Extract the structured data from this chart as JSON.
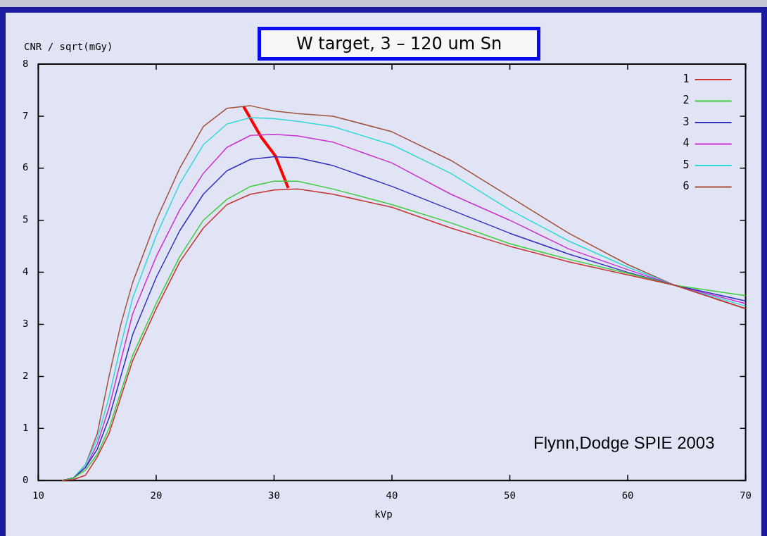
{
  "chart_data": {
    "type": "line",
    "title": "W target, 3 – 120 um Sn",
    "xlabel": "kVp",
    "ylabel": "CNR / sqrt(mGy)",
    "annotations": [
      "Flynn,Dodge SPIE 2003"
    ],
    "xlim": [
      10,
      70
    ],
    "xticks": [
      10,
      20,
      30,
      40,
      50,
      60,
      70
    ],
    "ylim": [
      0,
      8
    ],
    "yticks": [
      0,
      1,
      2,
      3,
      4,
      5,
      6,
      7,
      8
    ],
    "grid": false,
    "legend": "top right",
    "marker": "none",
    "line_style": "solid",
    "x": [
      12,
      13,
      14,
      15,
      16,
      17,
      18,
      20,
      22,
      24,
      26,
      28,
      30,
      32,
      35,
      40,
      45,
      50,
      55,
      60,
      64,
      70
    ],
    "series": [
      {
        "name": "1",
        "color": "#c83232",
        "values": [
          0,
          0.02,
          0.1,
          0.45,
          0.9,
          1.6,
          2.3,
          3.3,
          4.2,
          4.85,
          5.3,
          5.5,
          5.58,
          5.6,
          5.5,
          5.25,
          4.85,
          4.5,
          4.2,
          3.95,
          3.75,
          3.3
        ]
      },
      {
        "name": "2",
        "color": "#3ccc3c",
        "values": [
          0,
          0.05,
          0.2,
          0.5,
          1.0,
          1.7,
          2.4,
          3.4,
          4.3,
          5.0,
          5.4,
          5.65,
          5.75,
          5.75,
          5.6,
          5.3,
          4.95,
          4.55,
          4.25,
          3.98,
          3.75,
          3.55
        ]
      },
      {
        "name": "3",
        "color": "#3030c0",
        "values": [
          0,
          0.05,
          0.25,
          0.6,
          1.2,
          2.0,
          2.8,
          3.9,
          4.8,
          5.5,
          5.95,
          6.17,
          6.22,
          6.2,
          6.05,
          5.65,
          5.2,
          4.75,
          4.35,
          4.0,
          3.75,
          3.45
        ]
      },
      {
        "name": "4",
        "color": "#cc30cc",
        "values": [
          0,
          0.05,
          0.25,
          0.7,
          1.4,
          2.3,
          3.2,
          4.3,
          5.2,
          5.9,
          6.4,
          6.63,
          6.65,
          6.62,
          6.5,
          6.1,
          5.5,
          5.0,
          4.45,
          4.05,
          3.75,
          3.4
        ]
      },
      {
        "name": "5",
        "color": "#30d8d8",
        "values": [
          0,
          0.05,
          0.3,
          0.8,
          1.6,
          2.6,
          3.5,
          4.7,
          5.7,
          6.45,
          6.85,
          6.97,
          6.95,
          6.9,
          6.8,
          6.45,
          5.9,
          5.2,
          4.6,
          4.1,
          3.75,
          3.35
        ]
      },
      {
        "name": "6",
        "color": "#a0503c",
        "values": [
          0,
          0.05,
          0.3,
          0.9,
          2.0,
          3.0,
          3.8,
          5.0,
          6.0,
          6.8,
          7.15,
          7.2,
          7.1,
          7.05,
          7.0,
          6.7,
          6.15,
          5.45,
          4.75,
          4.15,
          3.75,
          3.3
        ]
      },
      {
        "type": "line",
        "color": "#ff0000",
        "x": [
          27.4,
          28.9,
          30.1,
          31.2
        ],
        "values": [
          7.19,
          6.6,
          6.24,
          5.62
        ]
      }
    ]
  }
}
